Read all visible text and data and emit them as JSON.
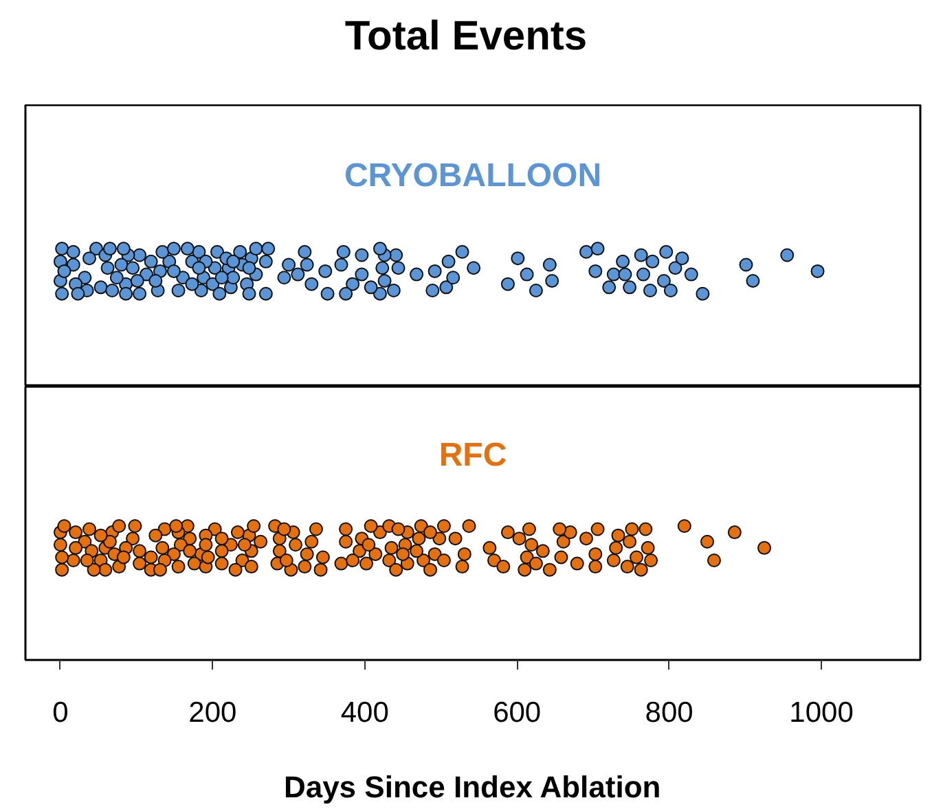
{
  "chart_data": [
    {
      "type": "scatter",
      "title": "Total Events",
      "orientation": "horizontal",
      "categories": [
        "CRYOBALLOON"
      ],
      "tick_labels": "y",
      "marker": "circle",
      "xlim": [
        -46,
        1130
      ],
      "series": [
        {
          "color": "#5a95d8",
          "x": [
            "CRYOBALLOON",
            "CRYOBALLOON",
            "CRYOBALLOON",
            "CRYOBALLOON",
            "CRYOBALLOON",
            "CRYOBALLOON",
            "CRYOBALLOON",
            "CRYOBALLOON",
            "CRYOBALLOON",
            "CRYOBALLOON",
            "CRYOBALLOON",
            "CRYOBALLOON",
            "CRYOBALLOON",
            "CRYOBALLOON",
            "CRYOBALLOON",
            "CRYOBALLOON",
            "CRYOBALLOON",
            "CRYOBALLOON",
            "CRYOBALLOON",
            "CRYOBALLOON",
            "CRYOBALLOON",
            "CRYOBALLOON",
            "CRYOBALLOON",
            "CRYOBALLOON",
            "CRYOBALLOON",
            "CRYOBALLOON",
            "CRYOBALLOON",
            "CRYOBALLOON",
            "CRYOBALLOON",
            "CRYOBALLOON",
            "CRYOBALLOON",
            "CRYOBALLOON",
            "CRYOBALLOON",
            "CRYOBALLOON",
            "CRYOBALLOON",
            "CRYOBALLOON",
            "CRYOBALLOON",
            "CRYOBALLOON",
            "CRYOBALLOON",
            "CRYOBALLOON",
            "CRYOBALLOON",
            "CRYOBALLOON",
            "CRYOBALLOON",
            "CRYOBALLOON",
            "CRYOBALLOON",
            "CRYOBALLOON",
            "CRYOBALLOON",
            "CRYOBALLOON",
            "CRYOBALLOON",
            "CRYOBALLOON",
            "CRYOBALLOON",
            "CRYOBALLOON",
            "CRYOBALLOON",
            "CRYOBALLOON",
            "CRYOBALLOON",
            "CRYOBALLOON",
            "CRYOBALLOON",
            "CRYOBALLOON",
            "CRYOBALLOON",
            "CRYOBALLOON",
            "CRYOBALLOON",
            "CRYOBALLOON",
            "CRYOBALLOON",
            "CRYOBALLOON",
            "CRYOBALLOON",
            "CRYOBALLOON",
            "CRYOBALLOON",
            "CRYOBALLOON",
            "CRYOBALLOON",
            "CRYOBALLOON",
            "CRYOBALLOON",
            "CRYOBALLOON",
            "CRYOBALLOON",
            "CRYOBALLOON",
            "CRYOBALLOON",
            "CRYOBALLOON",
            "CRYOBALLOON",
            "CRYOBALLOON",
            "CRYOBALLOON",
            "CRYOBALLOON",
            "CRYOBALLOON",
            "CRYOBALLOON",
            "CRYOBALLOON",
            "CRYOBALLOON",
            "CRYOBALLOON",
            "CRYOBALLOON",
            "CRYOBALLOON",
            "CRYOBALLOON",
            "CRYOBALLOON",
            "CRYOBALLOON",
            "CRYOBALLOON",
            "CRYOBALLOON",
            "CRYOBALLOON",
            "CRYOBALLOON",
            "CRYOBALLOON",
            "CRYOBALLOON",
            "CRYOBALLOON",
            "CRYOBALLOON",
            "CRYOBALLOON",
            "CRYOBALLOON",
            "CRYOBALLOON",
            "CRYOBALLOON",
            "CRYOBALLOON",
            "CRYOBALLOON",
            "CRYOBALLOON",
            "CRYOBALLOON",
            "CRYOBALLOON",
            "CRYOBALLOON",
            "CRYOBALLOON",
            "CRYOBALLOON",
            "CRYOBALLOON",
            "CRYOBALLOON",
            "CRYOBALLOON",
            "CRYOBALLOON",
            "CRYOBALLOON",
            "CRYOBALLOON",
            "CRYOBALLOON",
            "CRYOBALLOON",
            "CRYOBALLOON",
            "CRYOBALLOON",
            "CRYOBALLOON",
            "CRYOBALLOON",
            "CRYOBALLOON",
            "CRYOBALLOON",
            "CRYOBALLOON",
            "CRYOBALLOON",
            "CRYOBALLOON",
            "CRYOBALLOON"
          ],
          "values": [
            2,
            17,
            86,
            104,
            131,
            155,
            173,
            188,
            206,
            221,
            245,
            251,
            312,
            351,
            369,
            426,
            441,
            492,
            507,
            0,
            32,
            47,
            62,
            74,
            89,
            113,
            128,
            143,
            161,
            182,
            203,
            224,
            239,
            257,
            270,
            324,
            384,
            396,
            423,
            438,
            2,
            20,
            38,
            59,
            80,
            95,
            119,
            134,
            149,
            167,
            185,
            200,
            218,
            236,
            257,
            273,
            300,
            330,
            372,
            396,
            420,
            444,
            0,
            17,
            35,
            53,
            68,
            86,
            104,
            125,
            149,
            173,
            191,
            209,
            227,
            248,
            270,
            294,
            375,
            426,
            468,
            489,
            510,
            5,
            23,
            65,
            83,
            101,
            182,
            212,
            227,
            248,
            321,
            348,
            408,
            420,
            516,
            528,
            543,
            588,
            601,
            613,
            625,
            643,
            646,
            691,
            703,
            721,
            739,
            727,
            706,
            742,
            748,
            763,
            766,
            775,
            778,
            793,
            796,
            808,
            802,
            817,
            829,
            844,
            901,
            910,
            955,
            995
          ]
        }
      ]
    },
    {
      "type": "scatter",
      "xlabel": "Days Since Index Ablation",
      "orientation": "horizontal",
      "categories": [
        "RFC"
      ],
      "marker": "circle",
      "xlim": [
        -46,
        1130
      ],
      "xticks": [
        0,
        200,
        400,
        600,
        800,
        1000
      ],
      "series": [
        {
          "color": "#e5700c",
          "x": [
            "RFC",
            "RFC",
            "RFC",
            "RFC",
            "RFC",
            "RFC",
            "RFC",
            "RFC",
            "RFC",
            "RFC",
            "RFC",
            "RFC",
            "RFC",
            "RFC",
            "RFC",
            "RFC",
            "RFC",
            "RFC",
            "RFC",
            "RFC",
            "RFC",
            "RFC",
            "RFC",
            "RFC",
            "RFC",
            "RFC",
            "RFC",
            "RFC",
            "RFC",
            "RFC",
            "RFC",
            "RFC",
            "RFC",
            "RFC",
            "RFC",
            "RFC",
            "RFC",
            "RFC",
            "RFC",
            "RFC",
            "RFC",
            "RFC",
            "RFC",
            "RFC",
            "RFC",
            "RFC",
            "RFC",
            "RFC",
            "RFC",
            "RFC",
            "RFC",
            "RFC",
            "RFC",
            "RFC",
            "RFC",
            "RFC",
            "RFC",
            "RFC",
            "RFC",
            "RFC",
            "RFC",
            "RFC",
            "RFC",
            "RFC",
            "RFC",
            "RFC",
            "RFC",
            "RFC",
            "RFC",
            "RFC",
            "RFC",
            "RFC",
            "RFC",
            "RFC",
            "RFC",
            "RFC",
            "RFC",
            "RFC",
            "RFC",
            "RFC",
            "RFC",
            "RFC",
            "RFC",
            "RFC",
            "RFC",
            "RFC",
            "RFC",
            "RFC",
            "RFC",
            "RFC",
            "RFC",
            "RFC",
            "RFC",
            "RFC",
            "RFC",
            "RFC",
            "RFC",
            "RFC",
            "RFC",
            "RFC",
            "RFC",
            "RFC",
            "RFC",
            "RFC",
            "RFC",
            "RFC",
            "RFC",
            "RFC",
            "RFC",
            "RFC",
            "RFC",
            "RFC",
            "RFC",
            "RFC",
            "RFC",
            "RFC",
            "RFC",
            "RFC",
            "RFC",
            "RFC",
            "RFC",
            "RFC",
            "RFC",
            "RFC",
            "RFC",
            "RFC",
            "RFC",
            "RFC",
            "RFC",
            "RFC",
            "RFC",
            "RFC",
            "RFC",
            "RFC",
            "RFC",
            "RFC",
            "RFC",
            "RFC",
            "RFC",
            "RFC",
            "RFC",
            "RFC",
            "RFC",
            "RFC",
            "RFC",
            "RFC",
            "RFC",
            "RFC",
            "RFC"
          ],
          "values": [
            2,
            32,
            53,
            68,
            134,
            155,
            170,
            185,
            203,
            224,
            239,
            248,
            288,
            303,
            330,
            345,
            420,
            435,
            456,
            471,
            492,
            504,
            0,
            17,
            38,
            59,
            77,
            95,
            119,
            137,
            158,
            176,
            191,
            212,
            230,
            263,
            285,
            306,
            324,
            342,
            396,
            414,
            432,
            453,
            477,
            498,
            2,
            20,
            41,
            59,
            71,
            86,
            104,
            125,
            149,
            167,
            191,
            212,
            233,
            251,
            288,
            309,
            321,
            375,
            393,
            402,
            432,
            456,
            486,
            504,
            0,
            20,
            44,
            65,
            77,
            98,
            119,
            137,
            155,
            170,
            191,
            212,
            251,
            254,
            282,
            294,
            369,
            384,
            408,
            441,
            450,
            474,
            5,
            35,
            53,
            83,
            104,
            131,
            152,
            194,
            242,
            297,
            336,
            375,
            405,
            444,
            468,
            486,
            519,
            531,
            537,
            528,
            570,
            588,
            564,
            582,
            603,
            613,
            616,
            610,
            619,
            625,
            634,
            643,
            661,
            658,
            670,
            656,
            679,
            691,
            703,
            706,
            703,
            727,
            733,
            730,
            745,
            748,
            757,
            769,
            772,
            751,
            763,
            776,
            820,
            850,
            859,
            886,
            925
          ]
        }
      ]
    }
  ]
}
